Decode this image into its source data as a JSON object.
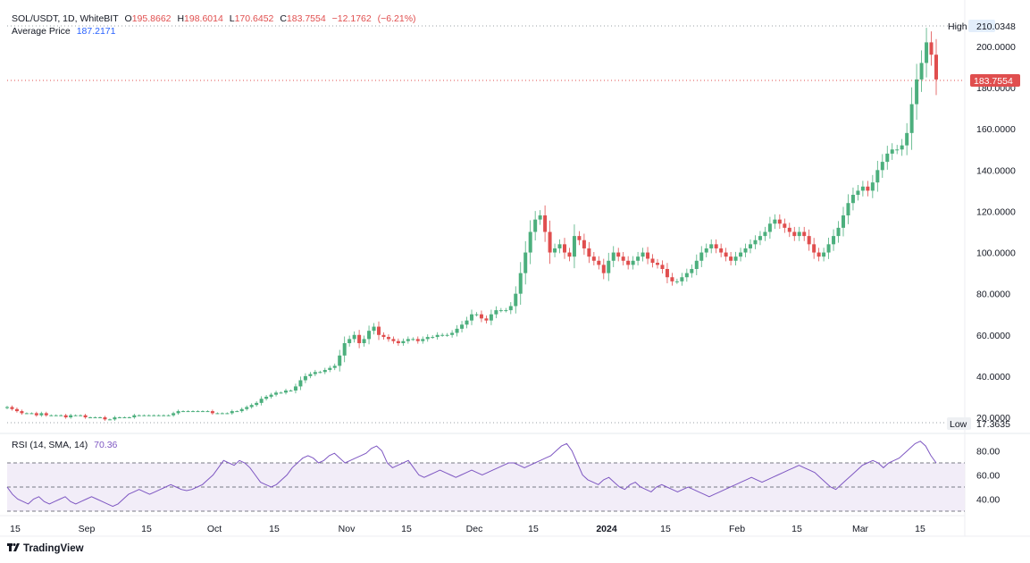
{
  "header": {
    "symbol": "SOL/USDT, 1D, WhiteBIT",
    "open_label": "O",
    "open": "195.8662",
    "high_label": "H",
    "high": "198.6014",
    "low_label": "L",
    "low": "170.6452",
    "close_label": "C",
    "close": "183.7554",
    "change": "−12.1762",
    "change_pct": "(−6.21%)",
    "avg_label": "Average Price",
    "avg_value": "187.2171"
  },
  "rsi_header": {
    "label": "RSI (14, SMA, 14)",
    "value": "70.36"
  },
  "price_tags": {
    "high_label": "High",
    "high_value": "210.0348",
    "low_label": "Low",
    "low_value": "17.3635",
    "last_value": "183.7554"
  },
  "branding": "TradingView",
  "colors": {
    "up": "#4caf7d",
    "down": "#e04e4e",
    "rsi_line": "#7e57c2",
    "rsi_band": "#ede7f6",
    "last_tag": "#e04e4e",
    "high_tag": "#e3eefb"
  },
  "chart_data": {
    "type": "candlestick",
    "title": "SOL/USDT, 1D, WhiteBIT",
    "price_axis": {
      "ylim": [
        17.3635,
        210.0348
      ],
      "ticks": [
        "200.0000",
        "180.0000",
        "160.0000",
        "140.0000",
        "120.0000",
        "100.0000",
        "80.0000",
        "60.0000",
        "40.0000",
        "20.0000"
      ]
    },
    "x_ticks": [
      "15",
      "Sep",
      "15",
      "Oct",
      "15",
      "Nov",
      "15",
      "Dec",
      "15",
      "2024",
      "15",
      "Feb",
      "15",
      "Mar",
      "15"
    ],
    "close_approx": [
      25,
      24,
      23,
      22,
      22,
      22,
      21,
      22,
      21,
      21,
      21,
      21,
      20,
      21,
      21,
      21,
      20,
      20,
      20,
      20,
      19,
      19,
      20,
      20,
      20,
      20,
      21,
      21,
      21,
      21,
      21,
      21,
      21,
      21,
      22,
      23,
      23,
      23,
      23,
      23,
      23,
      23,
      22,
      22,
      22,
      22,
      23,
      23,
      24,
      25,
      26,
      27,
      29,
      30,
      31,
      32,
      32,
      33,
      33,
      35,
      38,
      40,
      41,
      42,
      42,
      43,
      44,
      45,
      50,
      56,
      58,
      60,
      56,
      58,
      62,
      64,
      60,
      59,
      58,
      57,
      56,
      57,
      58,
      58,
      57,
      58,
      59,
      59,
      60,
      60,
      60,
      61,
      63,
      65,
      67,
      70,
      70,
      68,
      67,
      70,
      72,
      72,
      72,
      74,
      80,
      90,
      100,
      110,
      116,
      118,
      110,
      100,
      102,
      104,
      100,
      98,
      108,
      106,
      102,
      98,
      96,
      94,
      90,
      96,
      100,
      98,
      96,
      94,
      96,
      98,
      100,
      97,
      95,
      94,
      92,
      88,
      86,
      86,
      88,
      90,
      92,
      96,
      100,
      102,
      104,
      102,
      100,
      98,
      96,
      98,
      100,
      102,
      104,
      106,
      108,
      110,
      114,
      116,
      114,
      112,
      110,
      108,
      110,
      108,
      104,
      100,
      98,
      100,
      104,
      108,
      112,
      118,
      124,
      128,
      130,
      132,
      130,
      134,
      140,
      144,
      148,
      150,
      150,
      152,
      158,
      172,
      184,
      192,
      202,
      196,
      184
    ],
    "rsi": {
      "name": "RSI (14, SMA, 14)",
      "last": 70.36,
      "bands": [
        70,
        50,
        30
      ],
      "ticks": [
        "80.00",
        "60.00",
        "40.00"
      ],
      "values": [
        50,
        44,
        40,
        38,
        36,
        40,
        42,
        38,
        36,
        38,
        40,
        42,
        38,
        36,
        38,
        40,
        42,
        40,
        38,
        36,
        34,
        36,
        40,
        44,
        46,
        48,
        46,
        44,
        46,
        48,
        50,
        52,
        50,
        48,
        47,
        48,
        50,
        52,
        56,
        60,
        66,
        72,
        70,
        68,
        72,
        70,
        66,
        60,
        54,
        52,
        50,
        52,
        56,
        60,
        66,
        70,
        74,
        76,
        74,
        70,
        72,
        76,
        78,
        74,
        70,
        72,
        74,
        76,
        78,
        82,
        84,
        80,
        70,
        66,
        68,
        70,
        72,
        66,
        60,
        58,
        60,
        62,
        64,
        62,
        60,
        58,
        60,
        62,
        64,
        62,
        60,
        62,
        64,
        66,
        68,
        70,
        70,
        68,
        66,
        68,
        70,
        72,
        74,
        76,
        80,
        84,
        86,
        80,
        70,
        60,
        56,
        54,
        52,
        56,
        58,
        54,
        50,
        48,
        52,
        54,
        50,
        48,
        46,
        50,
        52,
        50,
        48,
        46,
        48,
        50,
        48,
        46,
        44,
        42,
        44,
        46,
        48,
        50,
        52,
        54,
        56,
        58,
        56,
        54,
        56,
        58,
        60,
        62,
        64,
        66,
        68,
        66,
        64,
        62,
        58,
        54,
        50,
        48,
        52,
        56,
        60,
        64,
        68,
        70,
        72,
        70,
        66,
        70,
        72,
        74,
        78,
        82,
        86,
        88,
        84,
        76,
        70
      ]
    }
  }
}
